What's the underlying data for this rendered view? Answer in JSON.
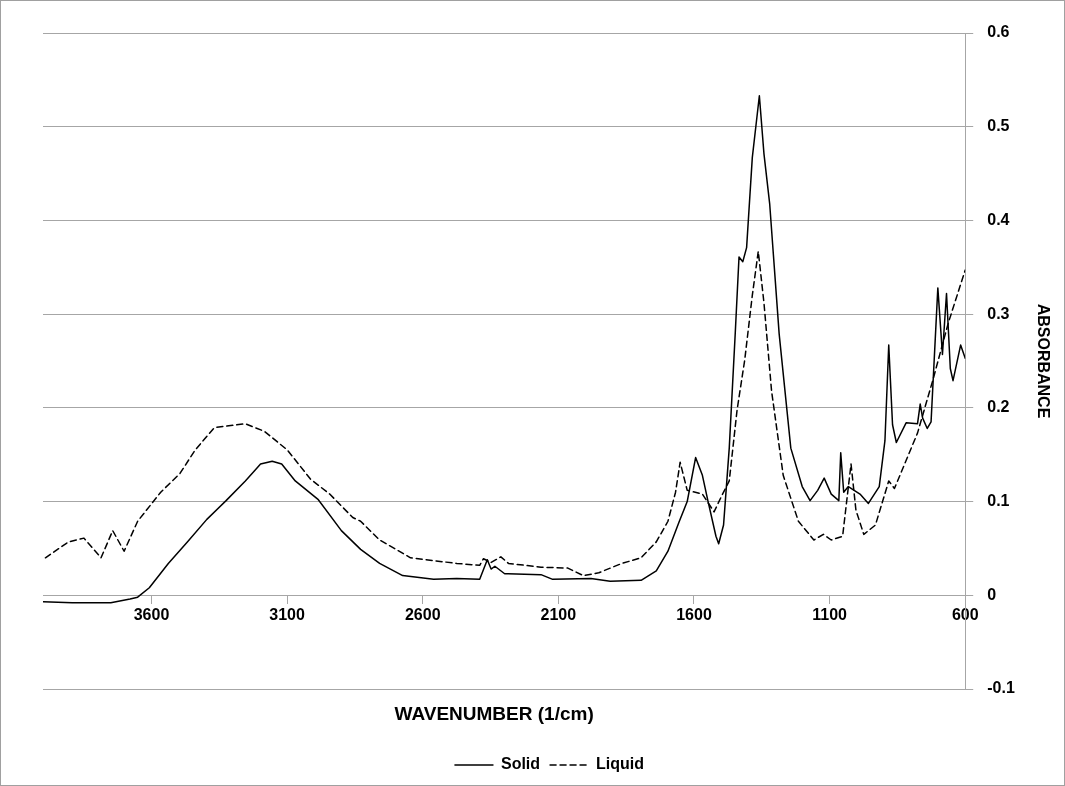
{
  "chart_data": {
    "type": "line",
    "xlabel": "WAVENUMBER (1/cm)",
    "ylabel": "ABSORBANCE",
    "xlim": [
      4000,
      600
    ],
    "xticks": [
      3600,
      3100,
      2600,
      2100,
      1600,
      1100,
      600
    ],
    "ylim": [
      -0.1,
      0.6
    ],
    "yticks": [
      -0.1,
      0,
      0.1,
      0.2,
      0.3,
      0.4,
      0.5,
      0.6
    ],
    "grid": "y",
    "legend": "bottom",
    "marker": "none",
    "series": [
      {
        "name": "Solid",
        "color": "#000000",
        "line_style": "solid",
        "x": [
          3999,
          3892,
          3750,
          3679,
          3651,
          3608,
          3538,
          3467,
          3396,
          3325,
          3254,
          3198,
          3155,
          3120,
          3070,
          2985,
          2900,
          2829,
          2759,
          2674,
          2560,
          2475,
          2390,
          2362,
          2348,
          2334,
          2298,
          2164,
          2121,
          1980,
          1909,
          1795,
          1739,
          1696,
          1654,
          1625,
          1594,
          1569,
          1548,
          1519,
          1509,
          1491,
          1470,
          1448,
          1434,
          1420,
          1406,
          1385,
          1359,
          1342,
          1321,
          1286,
          1243,
          1201,
          1172,
          1144,
          1120,
          1094,
          1066,
          1059,
          1048,
          1031,
          988,
          957,
          917,
          896,
          882,
          868,
          854,
          818,
          776,
          766,
          757,
          740,
          726,
          701,
          684,
          669,
          655,
          645,
          617,
          600
        ],
        "values": [
          -0.007,
          -0.008,
          -0.008,
          -0.004,
          -0.002,
          0.008,
          0.034,
          0.057,
          0.081,
          0.101,
          0.122,
          0.14,
          0.143,
          0.14,
          0.122,
          0.102,
          0.069,
          0.049,
          0.034,
          0.021,
          0.017,
          0.018,
          0.017,
          0.038,
          0.028,
          0.031,
          0.023,
          0.022,
          0.017,
          0.018,
          0.015,
          0.016,
          0.026,
          0.047,
          0.079,
          0.1,
          0.147,
          0.128,
          0.1,
          0.063,
          0.055,
          0.075,
          0.157,
          0.279,
          0.361,
          0.356,
          0.371,
          0.467,
          0.533,
          0.471,
          0.418,
          0.279,
          0.157,
          0.116,
          0.101,
          0.112,
          0.125,
          0.108,
          0.101,
          0.152,
          0.11,
          0.116,
          0.108,
          0.098,
          0.116,
          0.165,
          0.267,
          0.182,
          0.163,
          0.184,
          0.183,
          0.204,
          0.189,
          0.178,
          0.185,
          0.328,
          0.257,
          0.322,
          0.242,
          0.229,
          0.267,
          0.253
        ]
      },
      {
        "name": "Liquid",
        "color": "#000000",
        "line_style": "dashed",
        "x": [
          3991,
          3906,
          3849,
          3786,
          3743,
          3701,
          3651,
          3566,
          3495,
          3439,
          3368,
          3254,
          3184,
          3099,
          3014,
          2943,
          2858,
          2829,
          2759,
          2645,
          2475,
          2390,
          2376,
          2348,
          2312,
          2284,
          2164,
          2065,
          2008,
          1951,
          1866,
          1795,
          1739,
          1696,
          1668,
          1651,
          1625,
          1569,
          1526,
          1498,
          1470,
          1441,
          1413,
          1385,
          1363,
          1342,
          1314,
          1271,
          1215,
          1158,
          1123,
          1094,
          1052,
          1038,
          1021,
          1003,
          974,
          931,
          882,
          861,
          776,
          719,
          662,
          600
        ],
        "values": [
          0.04,
          0.057,
          0.061,
          0.04,
          0.069,
          0.047,
          0.079,
          0.11,
          0.13,
          0.155,
          0.179,
          0.183,
          0.175,
          0.155,
          0.124,
          0.108,
          0.083,
          0.079,
          0.059,
          0.04,
          0.034,
          0.032,
          0.039,
          0.035,
          0.041,
          0.034,
          0.03,
          0.029,
          0.021,
          0.024,
          0.034,
          0.04,
          0.057,
          0.079,
          0.11,
          0.142,
          0.112,
          0.108,
          0.089,
          0.106,
          0.122,
          0.198,
          0.251,
          0.32,
          0.367,
          0.312,
          0.218,
          0.128,
          0.079,
          0.059,
          0.065,
          0.059,
          0.063,
          0.098,
          0.14,
          0.091,
          0.065,
          0.075,
          0.122,
          0.114,
          0.173,
          0.23,
          0.291,
          0.347
        ]
      }
    ]
  }
}
